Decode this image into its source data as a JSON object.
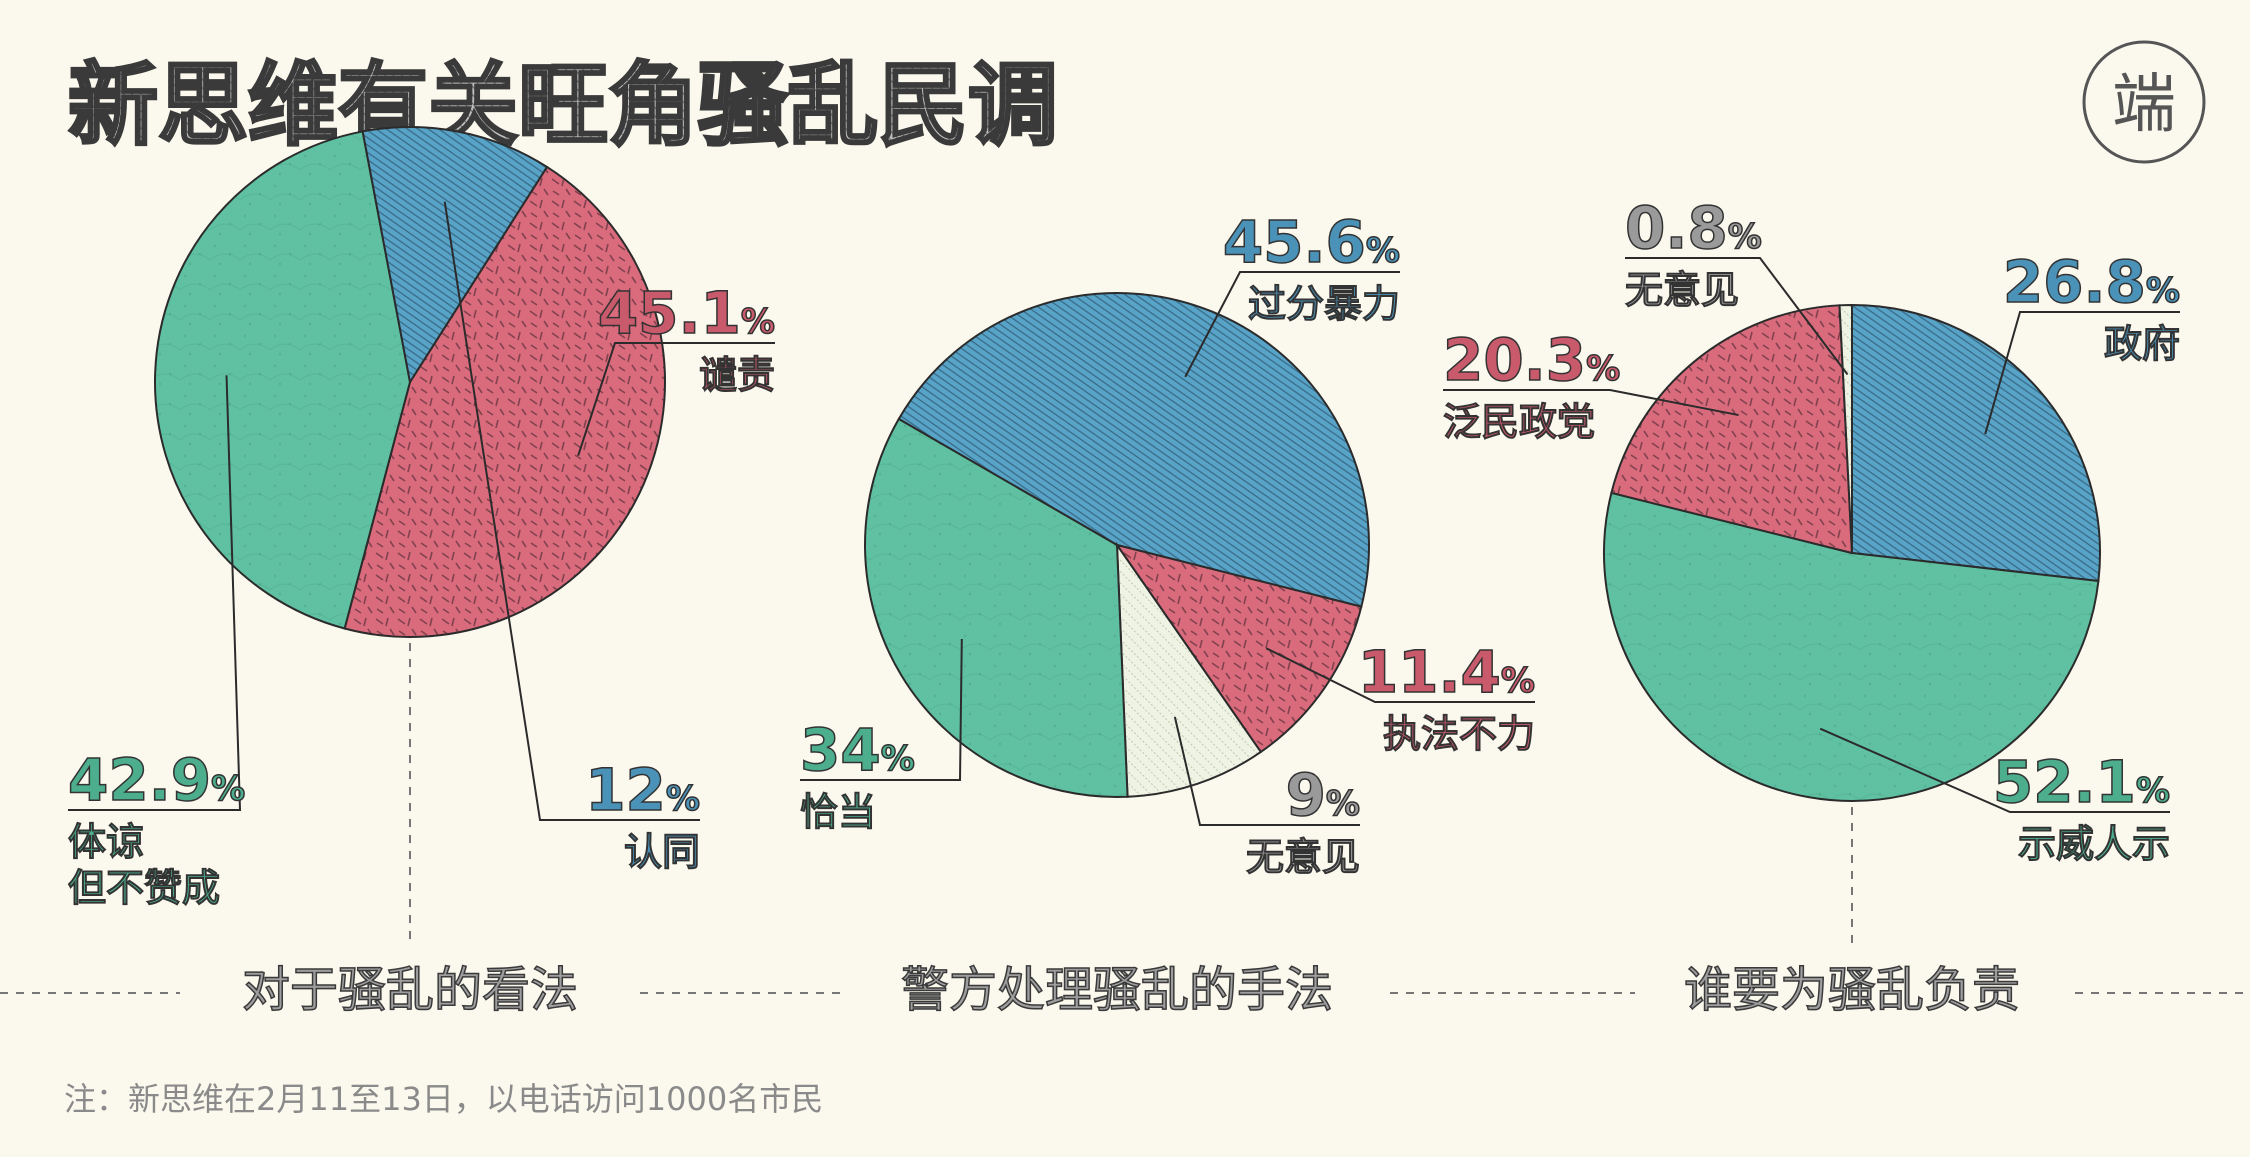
{
  "title": "新思维有关旺角骚乱民调",
  "logo_text": "端",
  "note": "注：新思维在2月11至13日，以电话访问1000名市民",
  "colors": {
    "background": "#fbf9ee",
    "green": "#5fc1a1",
    "red": "#d96b7d",
    "blue": "#58a3c8",
    "light": "#eef3e3",
    "green_text": "#4cae8c",
    "red_text": "#c95a6c",
    "blue_text": "#4b92b8",
    "gray_text": "#9a9a9a"
  },
  "chart_data": [
    {
      "type": "pie",
      "title": "对于骚乱的看法",
      "slices": [
        {
          "label": "谴责",
          "value": 45.1,
          "value_text": "45.1",
          "color": "red"
        },
        {
          "label": "体谅\n但不赞成",
          "value": 42.9,
          "value_text": "42.9",
          "color": "green"
        },
        {
          "label": "认同",
          "value": 12,
          "value_text": "12",
          "color": "blue"
        }
      ]
    },
    {
      "type": "pie",
      "title": "警方处理骚乱的手法",
      "slices": [
        {
          "label": "过分暴力",
          "value": 45.6,
          "value_text": "45.6",
          "color": "blue"
        },
        {
          "label": "执法不力",
          "value": 11.4,
          "value_text": "11.4",
          "color": "red"
        },
        {
          "label": "无意见",
          "value": 9,
          "value_text": "9",
          "color": "light"
        },
        {
          "label": "恰当",
          "value": 34,
          "value_text": "34",
          "color": "green"
        }
      ]
    },
    {
      "type": "pie",
      "title": "谁要为骚乱负责",
      "slices": [
        {
          "label": "政府",
          "value": 26.8,
          "value_text": "26.8",
          "color": "blue"
        },
        {
          "label": "示威人示",
          "value": 52.1,
          "value_text": "52.1",
          "color": "green"
        },
        {
          "label": "泛民政党",
          "value": 20.3,
          "value_text": "20.3",
          "color": "red"
        },
        {
          "label": "无意见",
          "value": 0.8,
          "value_text": "0.8",
          "color": "light"
        }
      ]
    }
  ]
}
